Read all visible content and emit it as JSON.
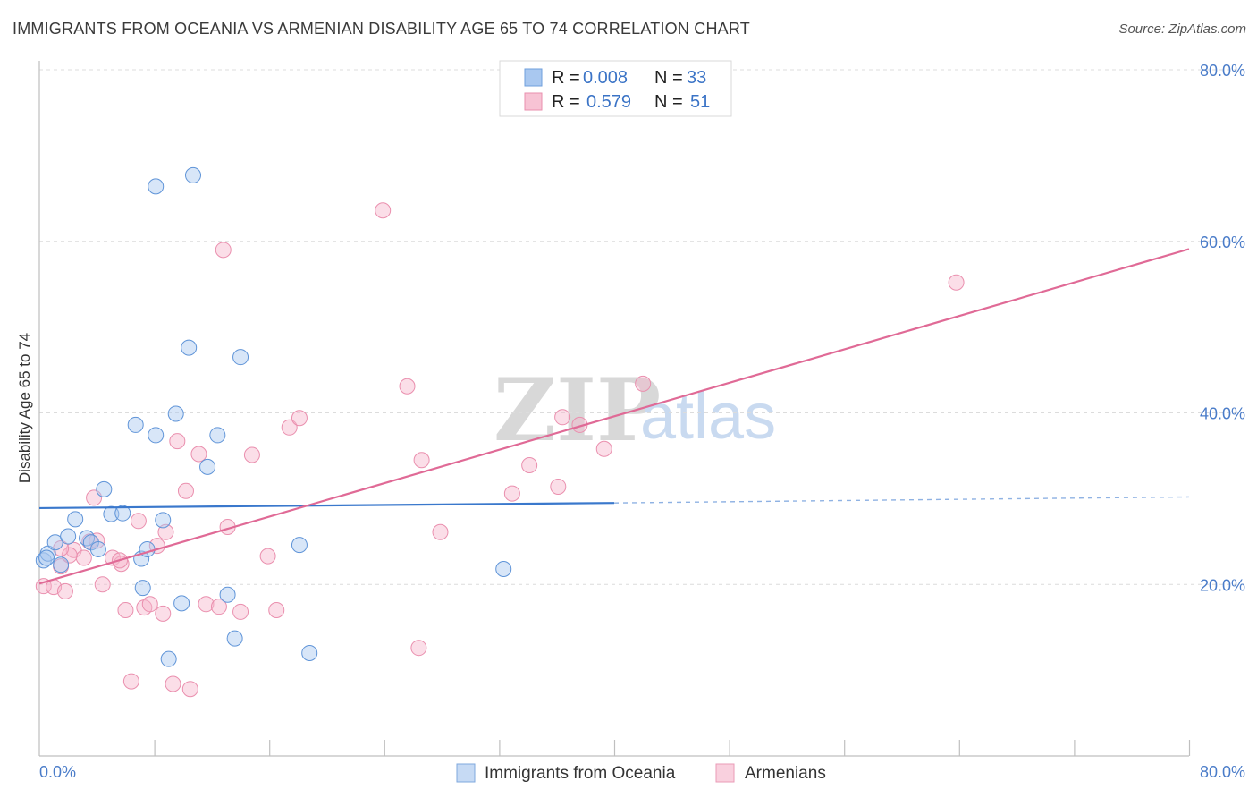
{
  "header": {
    "title": "IMMIGRANTS FROM OCEANIA VS ARMENIAN DISABILITY AGE 65 TO 74 CORRELATION CHART",
    "source": "Source: ZipAtlas.com"
  },
  "watermark": {
    "zip": "ZIP",
    "atlas": "atlas"
  },
  "legend": {
    "rows": [
      {
        "r_label": "R =",
        "r_value": "0.008",
        "n_label": "N =",
        "n_value": "33",
        "color": "#a9c8f0"
      },
      {
        "r_label": "R =",
        "r_value": "0.579",
        "n_label": "N =",
        "n_value": "51",
        "color": "#f7b6cc"
      }
    ]
  },
  "bottom_legend": {
    "items": [
      {
        "label": "Immigrants from Oceania",
        "color": "#a9c8f0"
      },
      {
        "label": "Armenians",
        "color": "#f7b6cc"
      }
    ]
  },
  "chart_data": {
    "type": "scatter",
    "title": "IMMIGRANTS FROM OCEANIA VS ARMENIAN DISABILITY AGE 65 TO 74 CORRELATION CHART",
    "xlabel": "",
    "ylabel": "Disability Age 65 to 74",
    "xlim": [
      0,
      80
    ],
    "ylim": [
      0,
      80
    ],
    "x_tick_labels": [
      "0.0%",
      "80.0%"
    ],
    "y_ticks": [
      20,
      40,
      60,
      80
    ],
    "y_tick_labels": [
      "20.0%",
      "40.0%",
      "60.0%",
      "80.0%"
    ],
    "grid": true,
    "legend_position": "top-center",
    "colors": {
      "oceania": "#4a88d8",
      "armenians": "#e6759e",
      "oceania_fill": "#a9c8f0",
      "armenians_fill": "#f7b6cc"
    },
    "series": [
      {
        "name": "Immigrants from Oceania",
        "points": [
          [
            0.3,
            22.8
          ],
          [
            0.6,
            23.6
          ],
          [
            1.1,
            24.9
          ],
          [
            1.5,
            22.3
          ],
          [
            2.0,
            25.6
          ],
          [
            2.5,
            27.6
          ],
          [
            3.3,
            25.4
          ],
          [
            3.6,
            24.9
          ],
          [
            4.1,
            24.1
          ],
          [
            4.5,
            31.1
          ],
          [
            5.0,
            28.2
          ],
          [
            5.8,
            28.3
          ],
          [
            6.7,
            38.6
          ],
          [
            7.2,
            19.6
          ],
          [
            7.1,
            23.0
          ],
          [
            7.5,
            24.1
          ],
          [
            8.1,
            37.4
          ],
          [
            8.6,
            27.5
          ],
          [
            9.0,
            11.3
          ],
          [
            9.5,
            39.9
          ],
          [
            9.9,
            17.8
          ],
          [
            10.4,
            47.6
          ],
          [
            10.7,
            67.7
          ],
          [
            11.7,
            33.7
          ],
          [
            12.4,
            37.4
          ],
          [
            13.1,
            18.8
          ],
          [
            13.6,
            13.7
          ],
          [
            14.0,
            46.5
          ],
          [
            8.1,
            66.4
          ],
          [
            18.1,
            24.6
          ],
          [
            18.8,
            12.0
          ],
          [
            32.3,
            21.8
          ],
          [
            0.5,
            23.1
          ]
        ]
      },
      {
        "name": "Armenians",
        "points": [
          [
            0.3,
            19.8
          ],
          [
            1.0,
            19.7
          ],
          [
            1.5,
            22.1
          ],
          [
            1.8,
            19.2
          ],
          [
            2.4,
            24.0
          ],
          [
            3.1,
            23.1
          ],
          [
            3.5,
            25.0
          ],
          [
            3.8,
            30.1
          ],
          [
            4.0,
            25.1
          ],
          [
            4.4,
            20.0
          ],
          [
            5.1,
            23.1
          ],
          [
            5.7,
            22.4
          ],
          [
            6.0,
            17.0
          ],
          [
            6.4,
            8.7
          ],
          [
            6.9,
            27.4
          ],
          [
            7.3,
            17.3
          ],
          [
            7.7,
            17.7
          ],
          [
            8.2,
            24.5
          ],
          [
            8.6,
            16.6
          ],
          [
            8.8,
            26.1
          ],
          [
            9.3,
            8.4
          ],
          [
            9.6,
            36.7
          ],
          [
            10.2,
            30.9
          ],
          [
            10.5,
            7.8
          ],
          [
            11.1,
            35.2
          ],
          [
            11.6,
            17.7
          ],
          [
            12.5,
            17.4
          ],
          [
            12.8,
            59.0
          ],
          [
            13.1,
            26.7
          ],
          [
            14.0,
            16.8
          ],
          [
            14.8,
            35.1
          ],
          [
            15.9,
            23.3
          ],
          [
            16.5,
            17.0
          ],
          [
            17.4,
            38.3
          ],
          [
            18.1,
            39.4
          ],
          [
            23.9,
            63.6
          ],
          [
            25.6,
            43.1
          ],
          [
            26.4,
            12.6
          ],
          [
            26.6,
            34.5
          ],
          [
            27.9,
            26.1
          ],
          [
            32.9,
            30.6
          ],
          [
            34.1,
            33.9
          ],
          [
            36.1,
            31.4
          ],
          [
            36.4,
            39.5
          ],
          [
            37.6,
            38.6
          ],
          [
            39.3,
            35.8
          ],
          [
            42.0,
            43.4
          ],
          [
            63.8,
            55.2
          ],
          [
            2.1,
            23.4
          ],
          [
            5.6,
            22.8
          ],
          [
            1.5,
            24.2
          ]
        ]
      }
    ],
    "trendlines": [
      {
        "series": "Immigrants from Oceania",
        "x": [
          0,
          40
        ],
        "y": [
          28.9,
          29.5
        ],
        "dashed_extension_to": [
          80,
          30.2
        ]
      },
      {
        "series": "Armenians",
        "x": [
          0,
          80
        ],
        "y": [
          20.1,
          59.1
        ]
      }
    ]
  }
}
